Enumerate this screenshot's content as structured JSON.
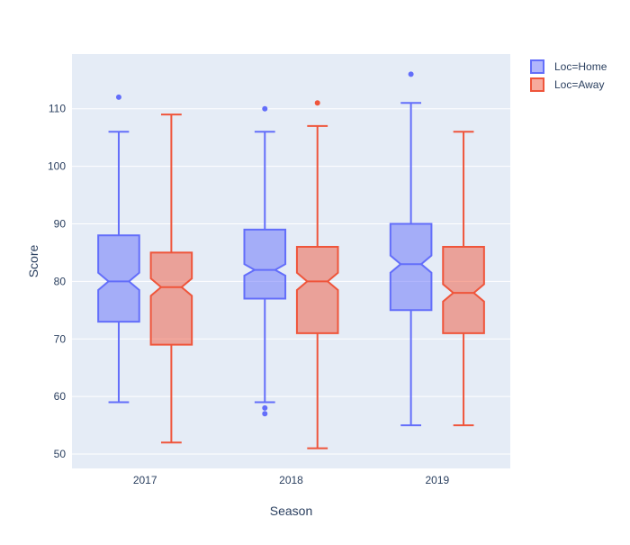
{
  "chart_data": {
    "type": "box",
    "notched": true,
    "xlabel": "Season",
    "ylabel": "Score",
    "ylim": [
      47.5,
      119.5
    ],
    "yticks": [
      50,
      60,
      70,
      80,
      90,
      100,
      110
    ],
    "categories": [
      "2017",
      "2018",
      "2019"
    ],
    "grid": true,
    "legend_position": "top-right",
    "series": [
      {
        "name": "Loc=Home",
        "color": "#636efa",
        "fill": "rgba(99,110,250,0.5)",
        "boxes": [
          {
            "category": "2017",
            "min": 59,
            "q1": 73,
            "median": 80,
            "q3": 88,
            "max": 106,
            "notch_low": 78.5,
            "notch_high": 81.5,
            "outliers": [
              112
            ]
          },
          {
            "category": "2018",
            "min": 59,
            "q1": 77,
            "median": 82,
            "q3": 89,
            "max": 106,
            "notch_low": 81,
            "notch_high": 83,
            "outliers": [
              110,
              58,
              57
            ]
          },
          {
            "category": "2019",
            "min": 55,
            "q1": 75,
            "median": 83,
            "q3": 90,
            "max": 111,
            "notch_low": 81.5,
            "notch_high": 84.5,
            "outliers": [
              116
            ]
          }
        ]
      },
      {
        "name": "Loc=Away",
        "color": "#ef553b",
        "fill": "rgba(239,85,59,0.5)",
        "boxes": [
          {
            "category": "2017",
            "min": 52,
            "q1": 69,
            "median": 79,
            "q3": 85,
            "max": 109,
            "notch_low": 77.5,
            "notch_high": 80.5,
            "outliers": []
          },
          {
            "category": "2018",
            "min": 51,
            "q1": 71,
            "median": 80,
            "q3": 86,
            "max": 107,
            "notch_low": 78.5,
            "notch_high": 81.5,
            "outliers": [
              111
            ]
          },
          {
            "category": "2019",
            "min": 55,
            "q1": 71,
            "median": 78,
            "q3": 86,
            "max": 106,
            "notch_low": 76.5,
            "notch_high": 79.5,
            "outliers": []
          }
        ]
      }
    ]
  }
}
